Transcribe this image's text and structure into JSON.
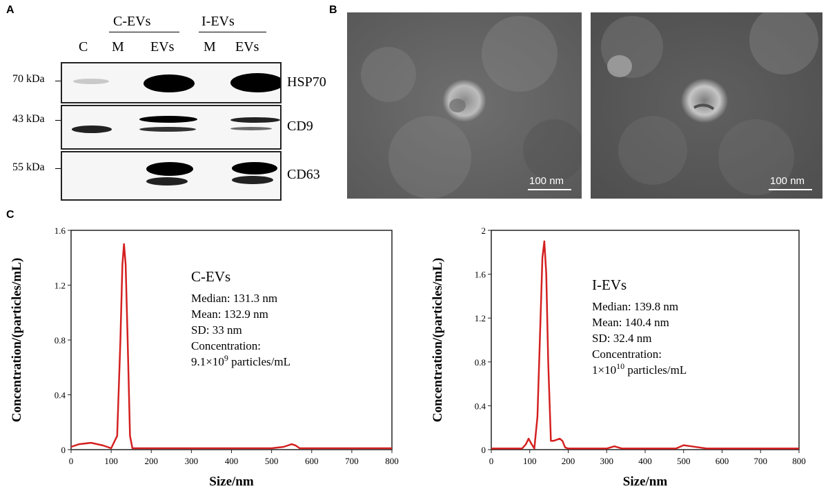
{
  "panels": {
    "a": "A",
    "b": "B",
    "c": "C"
  },
  "western_blot": {
    "group_labels": [
      "C-EVs",
      "I-EVs"
    ],
    "lane_labels": [
      "C",
      "M",
      "EVs",
      "M",
      "EVs"
    ],
    "blots": [
      {
        "marker": "70 kDa",
        "protein": "HSP70"
      },
      {
        "marker": "43 kDa",
        "protein": "CD9"
      },
      {
        "marker": "55 kDa",
        "protein": "CD63"
      }
    ]
  },
  "tem": {
    "scale_bar": "100 nm"
  },
  "nta": {
    "xlabel": "Size/nm",
    "ylabel": "Concentration/(particles/mL)",
    "charts": [
      {
        "name": "C-EVs",
        "stats": [
          "Median: 131.3 nm",
          "Mean: 132.9 nm",
          "SD: 33 nm",
          "Concentration:"
        ],
        "conc_mantissa": "9.1×10",
        "conc_exp": "9",
        "conc_unit": " particles/mL",
        "xticks": [
          "0",
          "100",
          "200",
          "300",
          "400",
          "500",
          "600",
          "700",
          "800"
        ],
        "yticks": [
          "0",
          "0.4",
          "0.8",
          "1.2",
          "1.6"
        ],
        "ylim_max": 1.6
      },
      {
        "name": "I-EVs",
        "stats": [
          "Median: 139.8 nm",
          "Mean: 140.4 nm",
          "SD: 32.4 nm",
          "Concentration:"
        ],
        "conc_mantissa": "1×10",
        "conc_exp": "10",
        "conc_unit": " particles/mL",
        "xticks": [
          "0",
          "100",
          "200",
          "300",
          "400",
          "500",
          "600",
          "700",
          "800"
        ],
        "yticks": [
          "0",
          "0.4",
          "0.8",
          "1.2",
          "1.6",
          "2"
        ],
        "ylim_max": 2
      }
    ]
  },
  "chart_data": [
    {
      "type": "line",
      "title": "C-EVs",
      "xlabel": "Size/nm",
      "ylabel": "Concentration/(particles/mL)",
      "xlim": [
        0,
        800
      ],
      "ylim": [
        0,
        1.6
      ],
      "series": [
        {
          "name": "C-EVs",
          "color": "#d42020",
          "x": [
            0,
            20,
            50,
            80,
            100,
            115,
            123,
            128,
            132,
            136,
            141,
            147,
            153,
            200,
            300,
            400,
            500,
            530,
            550,
            560,
            570,
            600,
            700,
            800
          ],
          "y": [
            0.02,
            0.04,
            0.05,
            0.03,
            0.01,
            0.1,
            0.8,
            1.35,
            1.5,
            1.35,
            0.8,
            0.1,
            0.01,
            0.01,
            0.01,
            0.01,
            0.01,
            0.02,
            0.04,
            0.03,
            0.01,
            0.01,
            0.01,
            0.01
          ]
        }
      ]
    },
    {
      "type": "line",
      "title": "I-EVs",
      "xlabel": "Size/nm",
      "ylabel": "Concentration/(particles/mL)",
      "xlim": [
        0,
        800
      ],
      "ylim": [
        0,
        2
      ],
      "series": [
        {
          "name": "I-EVs",
          "color": "#d42020",
          "x": [
            0,
            80,
            90,
            97,
            105,
            112,
            120,
            128,
            133,
            138,
            143,
            148,
            155,
            162,
            170,
            178,
            185,
            192,
            200,
            300,
            320,
            340,
            400,
            480,
            500,
            520,
            560,
            600,
            700,
            800
          ],
          "y": [
            0.01,
            0.01,
            0.05,
            0.1,
            0.05,
            0.01,
            0.3,
            1.2,
            1.75,
            1.9,
            1.6,
            0.8,
            0.08,
            0.08,
            0.09,
            0.1,
            0.08,
            0.02,
            0.01,
            0.01,
            0.03,
            0.01,
            0.01,
            0.01,
            0.04,
            0.03,
            0.01,
            0.01,
            0.01,
            0.01
          ]
        }
      ]
    }
  ]
}
